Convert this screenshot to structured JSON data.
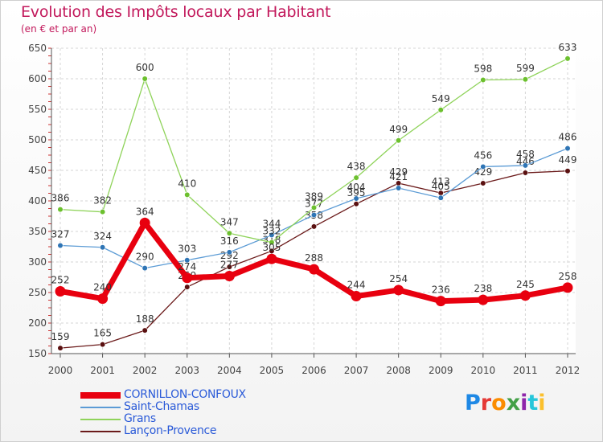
{
  "header": {
    "title": "Evolution des Impôts locaux par Habitant",
    "subtitle": "(en € et par an)"
  },
  "logo": {
    "text": "Proxiti",
    "colors": [
      "#1e88e5",
      "#e53935",
      "#fb8c00",
      "#43a047",
      "#8e24aa",
      "#26c6da",
      "#fbc02d"
    ]
  },
  "chart_data": {
    "type": "line",
    "title": "Evolution des Impôts locaux par Habitant",
    "subtitle": "(en € et par an)",
    "xlabel": "",
    "ylabel": "",
    "ylim": [
      150,
      650
    ],
    "yticks": [
      150,
      200,
      250,
      300,
      350,
      400,
      450,
      500,
      550,
      600,
      650
    ],
    "grid": true,
    "legend_position": "bottom-left",
    "x": [
      "2000",
      "2001",
      "2002",
      "2003",
      "2004",
      "2005",
      "2006",
      "2007",
      "2008",
      "2009",
      "2010",
      "2011",
      "2012"
    ],
    "series": [
      {
        "name": "Lançon-Provence",
        "color": "#6b1a1a",
        "marker": "#5a1010",
        "width": 1.3,
        "values": [
          159,
          165,
          188,
          259,
          292,
          318,
          358,
          395,
          429,
          413,
          429,
          446,
          449
        ],
        "labels": [
          "159",
          "165",
          "188",
          "259",
          "292",
          "318",
          "358",
          "395",
          "429",
          "413",
          "429",
          "446",
          "449"
        ]
      },
      {
        "name": "Saint-Chamas",
        "color": "#5b9bd5",
        "marker": "#2f75b5",
        "width": 1.3,
        "values": [
          327,
          324,
          290,
          303,
          316,
          344,
          377,
          404,
          421,
          405,
          456,
          458,
          486
        ],
        "labels": [
          "327",
          "324",
          "290",
          "303",
          "316",
          "344",
          "377",
          "404",
          "421",
          "405",
          "456",
          "458",
          "486"
        ]
      },
      {
        "name": "Grans",
        "color": "#8fd35a",
        "marker": "#6cc02e",
        "width": 1.3,
        "values": [
          386,
          382,
          600,
          410,
          347,
          332,
          389,
          438,
          499,
          549,
          598,
          599,
          633
        ],
        "labels": [
          "386",
          "382",
          "600",
          "410",
          "347",
          "332",
          "389",
          "438",
          "499",
          "549",
          "598",
          "599",
          "633"
        ]
      },
      {
        "name": "CORNILLON-CONFOUX",
        "color": "#e8000f",
        "marker": "#e8000f",
        "width": 7,
        "values": [
          252,
          240,
          364,
          274,
          277,
          305,
          288,
          244,
          254,
          236,
          238,
          245,
          258
        ],
        "labels": [
          "252",
          "240",
          "364",
          "274",
          "277",
          "305",
          "288",
          "244",
          "254",
          "236",
          "238",
          "245",
          "258"
        ]
      }
    ],
    "legend": [
      {
        "name": "CORNILLON-CONFOUX",
        "color": "#e8000f",
        "text_color": "#2a5ad8"
      },
      {
        "name": "Saint-Chamas",
        "color": "#5b9bd5",
        "text_color": "#2a5ad8"
      },
      {
        "name": "Grans",
        "color": "#8fd35a",
        "text_color": "#2a5ad8"
      },
      {
        "name": "Lançon-Provence",
        "color": "#6b1a1a",
        "text_color": "#2a5ad8"
      }
    ]
  }
}
